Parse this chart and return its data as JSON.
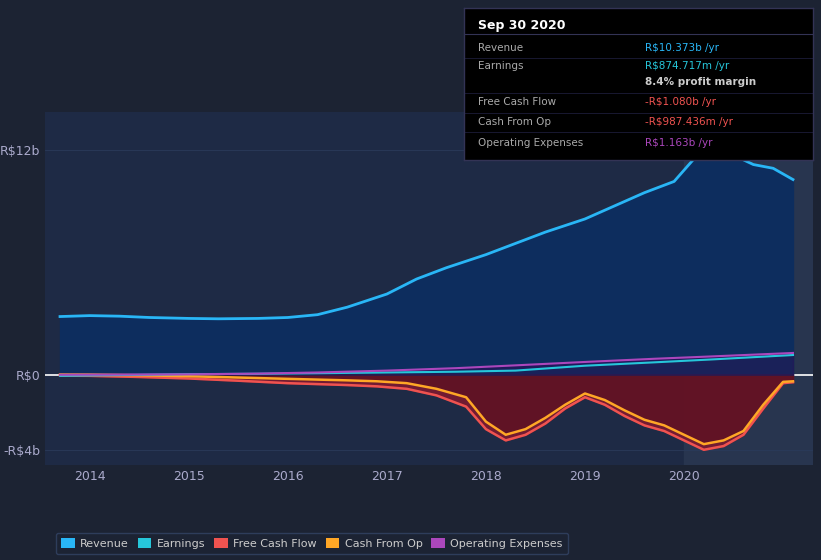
{
  "bg_color": "#1c2333",
  "plot_bg_color": "#1e2a45",
  "highlight_bg_color": "#28354f",
  "y_ticks": [
    12000000000,
    0,
    -4000000000
  ],
  "y_labels": [
    "R$12b",
    "R$0",
    "-R$4b"
  ],
  "x_ticks": [
    2014,
    2015,
    2016,
    2017,
    2018,
    2019,
    2020
  ],
  "ylim": [
    -4800000000,
    14000000000
  ],
  "xlim_start": 2013.55,
  "xlim_end": 2021.3,
  "highlight_x_start": 2020.0,
  "revenue_x": [
    2013.7,
    2014.0,
    2014.3,
    2014.6,
    2015.0,
    2015.3,
    2015.7,
    2016.0,
    2016.3,
    2016.6,
    2017.0,
    2017.3,
    2017.6,
    2018.0,
    2018.3,
    2018.6,
    2019.0,
    2019.3,
    2019.6,
    2019.9,
    2020.1,
    2020.3,
    2020.5,
    2020.7,
    2020.9,
    2021.1
  ],
  "revenue_y": [
    3100000000,
    3150000000,
    3120000000,
    3050000000,
    3000000000,
    2980000000,
    3000000000,
    3050000000,
    3200000000,
    3600000000,
    4300000000,
    5100000000,
    5700000000,
    6400000000,
    7000000000,
    7600000000,
    8300000000,
    9000000000,
    9700000000,
    10300000000,
    11500000000,
    12200000000,
    11700000000,
    11200000000,
    11000000000,
    10400000000
  ],
  "revenue_color": "#29b6f6",
  "earnings_x": [
    2013.7,
    2014.3,
    2015.0,
    2015.7,
    2016.3,
    2017.0,
    2017.7,
    2018.3,
    2019.0,
    2019.7,
    2020.3,
    2021.1
  ],
  "earnings_y": [
    -60000000,
    -20000000,
    30000000,
    50000000,
    80000000,
    120000000,
    160000000,
    220000000,
    480000000,
    660000000,
    820000000,
    1050000000
  ],
  "earnings_color": "#26c6da",
  "fcf_x": [
    2013.7,
    2014.0,
    2014.5,
    2015.0,
    2015.5,
    2016.0,
    2016.3,
    2016.6,
    2016.9,
    2017.2,
    2017.5,
    2017.8,
    2018.0,
    2018.2,
    2018.4,
    2018.6,
    2018.8,
    2019.0,
    2019.2,
    2019.4,
    2019.6,
    2019.8,
    2020.0,
    2020.2,
    2020.4,
    2020.6,
    2020.8,
    2021.0,
    2021.1
  ],
  "fcf_y": [
    -50000000,
    -60000000,
    -120000000,
    -200000000,
    -320000000,
    -450000000,
    -500000000,
    -550000000,
    -620000000,
    -750000000,
    -1100000000,
    -1700000000,
    -2900000000,
    -3500000000,
    -3200000000,
    -2600000000,
    -1800000000,
    -1200000000,
    -1600000000,
    -2200000000,
    -2700000000,
    -3000000000,
    -3500000000,
    -4000000000,
    -3800000000,
    -3200000000,
    -1800000000,
    -450000000,
    -400000000
  ],
  "fcf_color": "#ef5350",
  "cop_x": [
    2013.7,
    2014.0,
    2014.5,
    2015.0,
    2015.5,
    2016.0,
    2016.3,
    2016.6,
    2016.9,
    2017.2,
    2017.5,
    2017.8,
    2018.0,
    2018.2,
    2018.4,
    2018.6,
    2018.8,
    2019.0,
    2019.2,
    2019.4,
    2019.6,
    2019.8,
    2020.0,
    2020.2,
    2020.4,
    2020.6,
    2020.8,
    2021.0,
    2021.1
  ],
  "cop_y": [
    10000000,
    5000000,
    -30000000,
    -80000000,
    -150000000,
    -220000000,
    -260000000,
    -300000000,
    -350000000,
    -450000000,
    -750000000,
    -1200000000,
    -2500000000,
    -3200000000,
    -2900000000,
    -2300000000,
    -1600000000,
    -1000000000,
    -1350000000,
    -1900000000,
    -2400000000,
    -2700000000,
    -3200000000,
    -3700000000,
    -3500000000,
    -3000000000,
    -1600000000,
    -380000000,
    -350000000
  ],
  "cop_color": "#ffa726",
  "opex_x": [
    2013.7,
    2014.3,
    2015.0,
    2015.7,
    2016.3,
    2017.0,
    2017.7,
    2018.3,
    2019.0,
    2019.7,
    2020.3,
    2021.1
  ],
  "opex_y": [
    0,
    10000000,
    20000000,
    60000000,
    120000000,
    220000000,
    350000000,
    500000000,
    680000000,
    850000000,
    980000000,
    1160000000
  ],
  "opex_color": "#ab47bc",
  "info_box_title": "Sep 30 2020",
  "info_rows": [
    {
      "label": "Revenue",
      "value": "R$10.373b /yr",
      "vcolor": "#29b6f6",
      "sep": true
    },
    {
      "label": "Earnings",
      "value": "R$874.717m /yr",
      "vcolor": "#26c6da",
      "sep": false
    },
    {
      "label": "",
      "value": "8.4% profit margin",
      "vcolor": "#cccccc",
      "sep": true
    },
    {
      "label": "Free Cash Flow",
      "value": "-R$1.080b /yr",
      "vcolor": "#ef5350",
      "sep": true
    },
    {
      "label": "Cash From Op",
      "value": "-R$987.436m /yr",
      "vcolor": "#ef5350",
      "sep": true
    },
    {
      "label": "Operating Expenses",
      "value": "R$1.163b /yr",
      "vcolor": "#ab47bc",
      "sep": false
    }
  ],
  "legend": [
    {
      "label": "Revenue",
      "color": "#29b6f6"
    },
    {
      "label": "Earnings",
      "color": "#26c6da"
    },
    {
      "label": "Free Cash Flow",
      "color": "#ef5350"
    },
    {
      "label": "Cash From Op",
      "color": "#ffa726"
    },
    {
      "label": "Operating Expenses",
      "color": "#ab47bc"
    }
  ]
}
